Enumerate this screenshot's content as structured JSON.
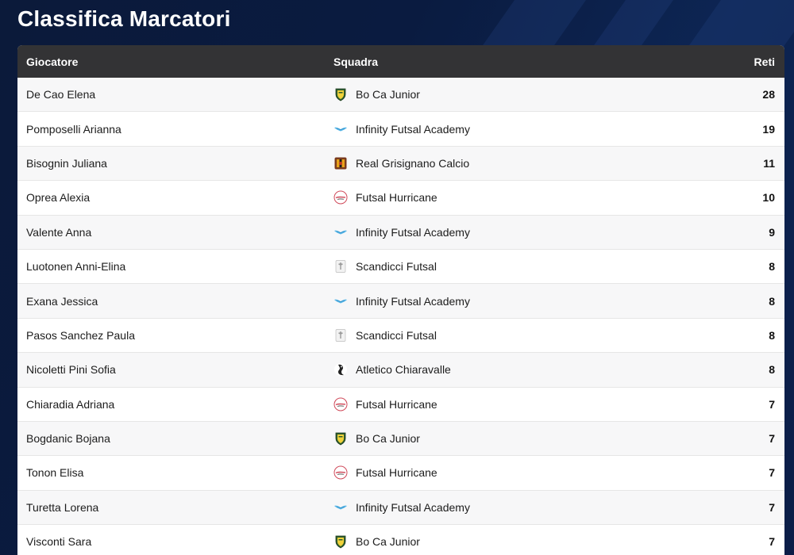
{
  "page": {
    "title": "Classifica Marcatori"
  },
  "table": {
    "headers": {
      "player": "Giocatore",
      "team": "Squadra",
      "goals": "Reti"
    },
    "rows": [
      {
        "player": "De Cao Elena",
        "team": "Bo Ca Junior",
        "logo": "boca-junior-shield-icon",
        "goals": "28"
      },
      {
        "player": "Pomposelli Arianna",
        "team": "Infinity Futsal Academy",
        "logo": "infinity-wings-icon",
        "goals": "19"
      },
      {
        "player": "Bisognin Juliana",
        "team": "Real Grisignano Calcio",
        "logo": "real-grisignano-crest-icon",
        "goals": "11"
      },
      {
        "player": "Oprea Alexia",
        "team": "Futsal Hurricane",
        "logo": "hurricane-circle-icon",
        "goals": "10"
      },
      {
        "player": "Valente Anna",
        "team": "Infinity Futsal Academy",
        "logo": "infinity-wings-icon",
        "goals": "9"
      },
      {
        "player": "Luotonen Anni-Elina",
        "team": "Scandicci Futsal",
        "logo": "scandicci-crest-icon",
        "goals": "8"
      },
      {
        "player": "Exana Jessica",
        "team": "Infinity Futsal Academy",
        "logo": "infinity-wings-icon",
        "goals": "8"
      },
      {
        "player": "Pasos Sanchez Paula",
        "team": "Scandicci Futsal",
        "logo": "scandicci-crest-icon",
        "goals": "8"
      },
      {
        "player": "Nicoletti Pini Sofia",
        "team": "Atletico Chiaravalle",
        "logo": "chiaravalle-mascot-icon",
        "goals": "8"
      },
      {
        "player": "Chiaradia Adriana",
        "team": "Futsal Hurricane",
        "logo": "hurricane-circle-icon",
        "goals": "7"
      },
      {
        "player": "Bogdanic Bojana",
        "team": "Bo Ca Junior",
        "logo": "boca-junior-shield-icon",
        "goals": "7"
      },
      {
        "player": "Tonon Elisa",
        "team": "Futsal Hurricane",
        "logo": "hurricane-circle-icon",
        "goals": "7"
      },
      {
        "player": "Turetta Lorena",
        "team": "Infinity Futsal Academy",
        "logo": "infinity-wings-icon",
        "goals": "7"
      },
      {
        "player": "Visconti Sara",
        "team": "Bo Ca Junior",
        "logo": "boca-junior-shield-icon",
        "goals": "7"
      }
    ]
  },
  "colors": {
    "background": "#0b1a3a",
    "header_bg": "#333335",
    "row_alt": "#f7f7f8"
  }
}
